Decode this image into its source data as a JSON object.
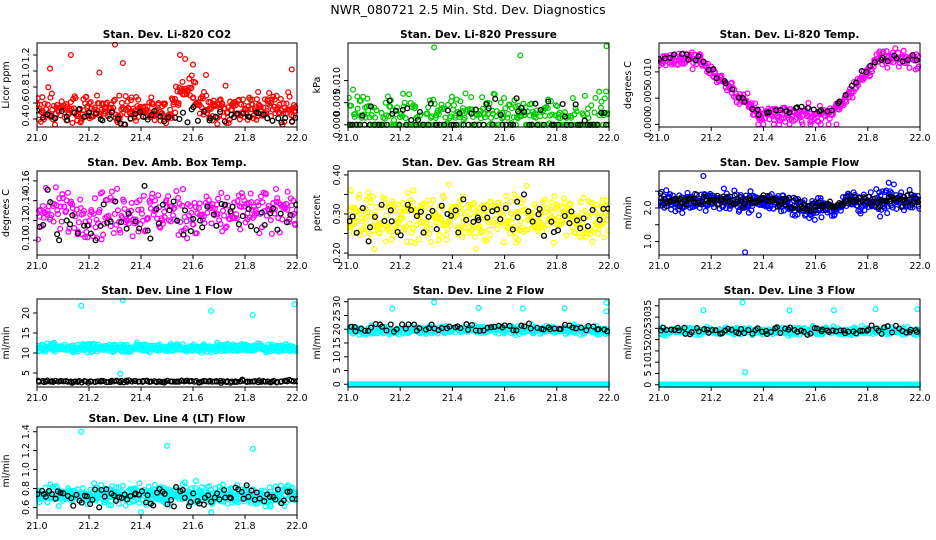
{
  "figure_title": "NWR_080721  2.5 Min. Std. Dev. Diagnostics",
  "colors": {
    "red": "#ff0000",
    "green": "#00cc00",
    "magenta": "#ff00ff",
    "yellow": "#ffff00",
    "blue": "#0000ff",
    "cyan": "#00ffff",
    "black": "#000000"
  },
  "chart_data": [
    {
      "type": "scatter",
      "title": "Stan. Dev. Li-820 CO2",
      "ylabel": "Licor ppm",
      "xlim": [
        21.0,
        22.0
      ],
      "ylim": [
        0.3,
        1.35
      ],
      "xticks": [
        21.0,
        21.2,
        21.4,
        21.6,
        21.8,
        22.0
      ],
      "xtick_labels": [
        "21.0",
        "21.2",
        "21.4",
        "21.6",
        "21.8",
        "22.0"
      ],
      "yticks": [
        0.4,
        0.6,
        0.8,
        1.0,
        1.2
      ],
      "ytick_labels": [
        "0.4",
        "0.6",
        "0.8",
        "1.0",
        "1.2"
      ],
      "series": [
        {
          "name": "dense",
          "color": "red",
          "n": 380,
          "gen": "co2"
        },
        {
          "name": "overlay",
          "color": "black",
          "n": 60,
          "gen": "co2b"
        },
        {
          "name": "outliers",
          "color": "red",
          "x": [
            21.13,
            21.3,
            21.33,
            21.55,
            21.57,
            21.6,
            21.24,
            21.05,
            21.98,
            21.65
          ],
          "y": [
            1.2,
            1.33,
            1.1,
            1.2,
            1.15,
            1.08,
            0.98,
            1.03,
            1.02,
            0.95
          ]
        }
      ]
    },
    {
      "type": "scatter",
      "title": "Stan. Dev. Li-820 Pressure",
      "ylabel": "kPa",
      "xlim": [
        21.0,
        22.0
      ],
      "ylim": [
        -0.0005,
        0.0185
      ],
      "xticks": [
        21.0,
        21.2,
        21.4,
        21.6,
        21.8,
        22.0
      ],
      "xtick_labels": [
        "21.0",
        "21.2",
        "21.4",
        "21.6",
        "21.8",
        "22.0"
      ],
      "yticks": [
        0.0,
        0.005,
        0.01
      ],
      "ytick_labels": [
        "0.000",
        "0.005",
        "0.010"
      ],
      "series": [
        {
          "name": "dense",
          "color": "green",
          "n": 330,
          "gen": "press"
        },
        {
          "name": "overlay",
          "color": "black",
          "n": 80,
          "gen": "pressb"
        },
        {
          "name": "outliers",
          "color": "green",
          "x": [
            21.33,
            21.66,
            21.99
          ],
          "y": [
            0.0175,
            0.0157,
            0.0178
          ]
        }
      ]
    },
    {
      "type": "scatter",
      "title": "Stan. Dev. Li-820 Temp.",
      "ylabel": "degrees C",
      "xlim": [
        21.0,
        22.0
      ],
      "ylim": [
        -0.0005,
        0.0155
      ],
      "xticks": [
        21.0,
        21.2,
        21.4,
        21.6,
        21.8,
        22.0
      ],
      "xtick_labels": [
        "21.0",
        "21.2",
        "21.4",
        "21.6",
        "21.8",
        "22.0"
      ],
      "yticks": [
        0.0,
        0.005,
        0.01
      ],
      "ytick_labels": [
        "0.000",
        "0.005",
        "0.010"
      ],
      "series": [
        {
          "name": "dense",
          "color": "magenta",
          "n": 340,
          "gen": "temp"
        },
        {
          "name": "overlay",
          "color": "black",
          "n": 55,
          "gen": "tempb"
        },
        {
          "name": "zeros",
          "color": "magenta",
          "x": [
            21.38,
            21.4,
            21.44,
            21.46,
            21.5,
            21.55,
            21.58,
            21.62,
            21.65,
            21.68
          ],
          "y": [
            0,
            0,
            0,
            0,
            0,
            0,
            0,
            0,
            0,
            0
          ]
        }
      ]
    },
    {
      "type": "scatter",
      "title": "Stan. Dev. Amb. Box Temp.",
      "ylabel": "degrees C",
      "xlim": [
        21.0,
        22.0
      ],
      "ylim": [
        0.085,
        0.17
      ],
      "xticks": [
        21.0,
        21.2,
        21.4,
        21.6,
        21.8,
        22.0
      ],
      "xtick_labels": [
        "21.0",
        "21.2",
        "21.4",
        "21.6",
        "21.8",
        "22.0"
      ],
      "yticks": [
        0.1,
        0.12,
        0.14,
        0.16
      ],
      "ytick_labels": [
        "0.10",
        "0.12",
        "0.14",
        "0.16"
      ],
      "series": [
        {
          "name": "dense",
          "color": "magenta",
          "n": 300,
          "gen": "amb"
        },
        {
          "name": "overlay",
          "color": "black",
          "n": 60,
          "gen": "ambb"
        }
      ]
    },
    {
      "type": "scatter",
      "title": "Stan. Dev. Gas Stream RH",
      "ylabel": "percent",
      "xlim": [
        21.0,
        22.0
      ],
      "ylim": [
        0.195,
        0.41
      ],
      "xticks": [
        21.0,
        21.2,
        21.4,
        21.6,
        21.8,
        22.0
      ],
      "xtick_labels": [
        "21.0",
        "21.2",
        "21.4",
        "21.6",
        "21.8",
        "22.0"
      ],
      "yticks": [
        0.2,
        0.25,
        0.3,
        0.35,
        0.4
      ],
      "ytick_labels": [
        "0.20",
        "",
        "0.30",
        "",
        "0.40"
      ],
      "series": [
        {
          "name": "dense",
          "color": "yellow",
          "n": 420,
          "gen": "rh"
        },
        {
          "name": "overlay",
          "color": "black",
          "n": 60,
          "gen": "rhb"
        }
      ]
    },
    {
      "type": "scatter",
      "title": "Stan. Dev. Sample Flow",
      "ylabel": "ml/min",
      "xlim": [
        21.0,
        22.0
      ],
      "ylim": [
        0.6,
        3.1
      ],
      "xticks": [
        21.0,
        21.2,
        21.4,
        21.6,
        21.8,
        22.0
      ],
      "xtick_labels": [
        "21.0",
        "21.2",
        "21.4",
        "21.6",
        "21.8",
        "22.0"
      ],
      "yticks": [
        1.0,
        1.5,
        2.0,
        2.5
      ],
      "ytick_labels": [
        "1.0",
        "",
        "2.0",
        ""
      ],
      "series": [
        {
          "name": "dense",
          "color": "blue",
          "n": 420,
          "gen": "flow"
        },
        {
          "name": "overlay",
          "color": "black",
          "n": 160,
          "gen": "flowb"
        },
        {
          "name": "outliers",
          "color": "blue",
          "x": [
            21.17,
            21.33,
            21.9,
            21.88
          ],
          "y": [
            2.95,
            0.68,
            2.7,
            2.75
          ]
        }
      ]
    },
    {
      "type": "scatter",
      "title": "Stan. Dev. Line 1 Flow",
      "ylabel": "ml/min",
      "xlim": [
        21.0,
        22.0
      ],
      "ylim": [
        1.5,
        23.5
      ],
      "xticks": [
        21.0,
        21.2,
        21.4,
        21.6,
        21.8,
        22.0
      ],
      "xtick_labels": [
        "21.0",
        "21.2",
        "21.4",
        "21.6",
        "21.8",
        "22.0"
      ],
      "yticks": [
        5,
        10,
        15,
        20
      ],
      "ytick_labels": [
        "5",
        "10",
        "15",
        "20"
      ],
      "series": [
        {
          "name": "dense",
          "color": "cyan",
          "n": 520,
          "gen": "l1"
        },
        {
          "name": "overlay",
          "color": "black",
          "n": 130,
          "gen": "l1b"
        },
        {
          "name": "outliers",
          "color": "cyan",
          "x": [
            21.17,
            21.33,
            21.67,
            21.83,
            21.99,
            21.32
          ],
          "y": [
            21.8,
            23.2,
            20.5,
            19.5,
            22.2,
            4.8
          ]
        }
      ]
    },
    {
      "type": "scatter",
      "title": "Stan. Dev. Line 2 Flow",
      "ylabel": "ml/min",
      "xlim": [
        21.0,
        22.0
      ],
      "ylim": [
        -1,
        31
      ],
      "xticks": [
        21.0,
        21.2,
        21.4,
        21.6,
        21.8,
        22.0
      ],
      "xtick_labels": [
        "21.0",
        "21.2",
        "21.4",
        "21.6",
        "21.8",
        "22.0"
      ],
      "yticks": [
        0,
        5,
        10,
        15,
        20,
        25,
        30
      ],
      "ytick_labels": [
        "0",
        "5",
        "10",
        "15",
        "20",
        "25",
        "30"
      ],
      "series": [
        {
          "name": "baseline",
          "color": "cyan",
          "n": 260,
          "gen": "zero"
        },
        {
          "name": "dense",
          "color": "cyan",
          "n": 420,
          "gen": "l2"
        },
        {
          "name": "overlay",
          "color": "black",
          "n": 70,
          "gen": "l2b"
        },
        {
          "name": "outliers",
          "color": "cyan",
          "x": [
            21.17,
            21.33,
            21.5,
            21.67,
            21.83,
            21.99,
            21.99
          ],
          "y": [
            27.5,
            29.8,
            27.8,
            27.5,
            27.6,
            29.6,
            26.5
          ]
        }
      ]
    },
    {
      "type": "scatter",
      "title": "Stan. Dev. Line 3 Flow",
      "ylabel": "ml/min",
      "xlim": [
        21.0,
        22.0
      ],
      "ylim": [
        -1,
        38
      ],
      "xticks": [
        21.0,
        21.2,
        21.4,
        21.6,
        21.8,
        22.0
      ],
      "xtick_labels": [
        "21.0",
        "21.2",
        "21.4",
        "21.6",
        "21.8",
        "22.0"
      ],
      "yticks": [
        0,
        5,
        10,
        15,
        20,
        25,
        30,
        35
      ],
      "ytick_labels": [
        "0",
        "5",
        "10",
        "15",
        "20",
        "25",
        "30",
        "35"
      ],
      "series": [
        {
          "name": "baseline",
          "color": "cyan",
          "n": 260,
          "gen": "zero"
        },
        {
          "name": "dense",
          "color": "cyan",
          "n": 420,
          "gen": "l3"
        },
        {
          "name": "overlay",
          "color": "black",
          "n": 80,
          "gen": "l3b"
        },
        {
          "name": "outliers",
          "color": "cyan",
          "x": [
            21.17,
            21.32,
            21.33,
            21.5,
            21.67,
            21.83,
            21.99
          ],
          "y": [
            33,
            36.5,
            5.5,
            33,
            33,
            33.5,
            33.5
          ]
        }
      ]
    },
    {
      "type": "scatter",
      "title": "Stan. Dev. Line 4 (LT) Flow",
      "ylabel": "ml/min",
      "xlim": [
        21.0,
        22.0
      ],
      "ylim": [
        0.52,
        1.45
      ],
      "xticks": [
        21.0,
        21.2,
        21.4,
        21.6,
        21.8,
        22.0
      ],
      "xtick_labels": [
        "21.0",
        "21.2",
        "21.4",
        "21.6",
        "21.8",
        "22.0"
      ],
      "yticks": [
        0.6,
        0.8,
        1.0,
        1.2,
        1.4
      ],
      "ytick_labels": [
        "0.6",
        "0.8",
        "1.0",
        "1.2",
        "1.4"
      ],
      "series": [
        {
          "name": "dense",
          "color": "cyan",
          "n": 480,
          "gen": "l4"
        },
        {
          "name": "overlay",
          "color": "black",
          "n": 90,
          "gen": "l4b"
        },
        {
          "name": "outliers",
          "color": "cyan",
          "x": [
            21.17,
            21.5,
            21.83,
            21.67,
            21.4
          ],
          "y": [
            1.4,
            1.25,
            1.22,
            0.55,
            0.55
          ]
        }
      ]
    }
  ]
}
